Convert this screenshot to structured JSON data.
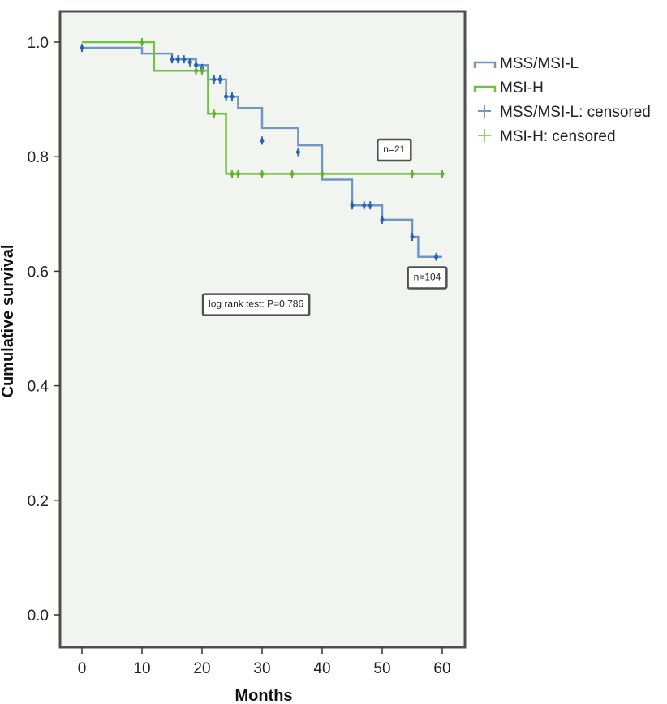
{
  "chart_data": {
    "type": "line",
    "subtype": "kaplan-meier",
    "title": "",
    "xlabel": "Months",
    "ylabel": "Cumulative survival",
    "xlim": [
      0,
      60
    ],
    "ylim": [
      0,
      1.0
    ],
    "xticks": [
      0,
      10,
      20,
      30,
      40,
      50,
      60
    ],
    "yticks": [
      0.0,
      0.2,
      0.4,
      0.6,
      0.8,
      1.0
    ],
    "xtick_labels": [
      "0",
      "10",
      "20",
      "30",
      "40",
      "50",
      "60"
    ],
    "ytick_labels": [
      "0.0",
      "0.2",
      "0.4",
      "0.6",
      "0.8",
      "1.0"
    ],
    "grid": false,
    "legend_position": "right",
    "background": "#f2f4ef",
    "series": [
      {
        "name": "MSS/MSI-L",
        "color": "#6f97c6",
        "censor_color": "#2a63b5",
        "steps": [
          [
            0,
            0.99
          ],
          [
            10,
            0.98
          ],
          [
            15,
            0.97
          ],
          [
            19,
            0.96
          ],
          [
            21,
            0.935
          ],
          [
            24,
            0.905
          ],
          [
            26,
            0.885
          ],
          [
            30,
            0.85
          ],
          [
            36,
            0.82
          ],
          [
            40,
            0.76
          ],
          [
            45,
            0.715
          ],
          [
            50,
            0.69
          ],
          [
            55,
            0.66
          ],
          [
            56,
            0.625
          ],
          [
            60,
            0.625
          ]
        ],
        "censored": [
          [
            0,
            0.99
          ],
          [
            15,
            0.97
          ],
          [
            16,
            0.97
          ],
          [
            17,
            0.97
          ],
          [
            18,
            0.965
          ],
          [
            19,
            0.96
          ],
          [
            20,
            0.955
          ],
          [
            22,
            0.935
          ],
          [
            23,
            0.935
          ],
          [
            24,
            0.905
          ],
          [
            25,
            0.905
          ],
          [
            30,
            0.828
          ],
          [
            36,
            0.808
          ],
          [
            45,
            0.715
          ],
          [
            47,
            0.715
          ],
          [
            48,
            0.715
          ],
          [
            50,
            0.69
          ],
          [
            55,
            0.66
          ],
          [
            59,
            0.625
          ],
          [
            60,
            0.585
          ]
        ]
      },
      {
        "name": "MSI-H",
        "color": "#6dc23f",
        "censor_color": "#5cb430",
        "steps": [
          [
            0,
            1.0
          ],
          [
            12,
            0.95
          ],
          [
            21,
            0.875
          ],
          [
            24,
            0.77
          ],
          [
            60,
            0.77
          ]
        ],
        "censored": [
          [
            10,
            1.0
          ],
          [
            19,
            0.95
          ],
          [
            20,
            0.95
          ],
          [
            22,
            0.875
          ],
          [
            25,
            0.77
          ],
          [
            26,
            0.77
          ],
          [
            30,
            0.77
          ],
          [
            35,
            0.77
          ],
          [
            40,
            0.77
          ],
          [
            55,
            0.77
          ],
          [
            60,
            0.77
          ]
        ]
      }
    ],
    "legend": [
      {
        "label": "MSS/MSI-L",
        "kind": "line",
        "color": "#6f97c6"
      },
      {
        "label": "MSI-H",
        "kind": "line",
        "color": "#6dc23f"
      },
      {
        "label": "MSS/MSI-L: censored",
        "kind": "marker",
        "color": "#6f97c6"
      },
      {
        "label": "MSI-H: censored",
        "kind": "marker",
        "color": "#8fd06a"
      }
    ],
    "annotations": [
      {
        "text": "n=21",
        "x": 52,
        "y": 0.813
      },
      {
        "text": "n=104",
        "x": 57.5,
        "y": 0.59
      },
      {
        "text": "log rank test: P=0.786",
        "x": 29,
        "y": 0.543
      }
    ]
  }
}
